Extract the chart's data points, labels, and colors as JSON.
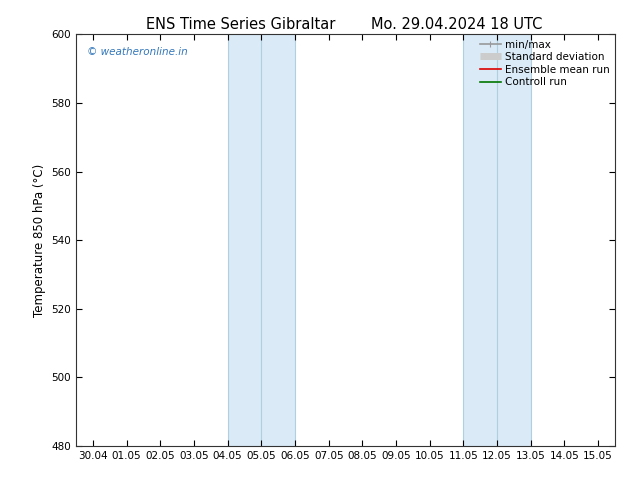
{
  "title_left": "ENS Time Series Gibraltar",
  "title_right": "Mo. 29.04.2024 18 UTC",
  "ylabel": "Temperature 850 hPa (°C)",
  "ylim": [
    480,
    600
  ],
  "yticks": [
    480,
    500,
    520,
    540,
    560,
    580,
    600
  ],
  "xtick_labels": [
    "30.04",
    "01.05",
    "02.05",
    "03.05",
    "04.05",
    "05.05",
    "06.05",
    "07.05",
    "08.05",
    "09.05",
    "10.05",
    "11.05",
    "12.05",
    "13.05",
    "14.05",
    "15.05"
  ],
  "xtick_positions": [
    0,
    1,
    2,
    3,
    4,
    5,
    6,
    7,
    8,
    9,
    10,
    11,
    12,
    13,
    14,
    15
  ],
  "xlim": [
    -0.5,
    15.5
  ],
  "shaded_bands": [
    {
      "x_start": 4,
      "x_end": 5,
      "x_mid": 5
    },
    {
      "x_start": 5,
      "x_end": 6,
      "x_mid": null
    },
    {
      "x_start": 11,
      "x_end": 12,
      "x_mid": 12
    },
    {
      "x_start": 12,
      "x_end": 13,
      "x_mid": null
    }
  ],
  "shade_color": "#daeaf7",
  "shade_edge_color": "#b0cfe0",
  "mid_line_color": "#b0cfe0",
  "watermark_text": "© weatheronline.in",
  "watermark_color": "#3377bb",
  "background_color": "#ffffff",
  "legend_items": [
    {
      "label": "min/max",
      "color": "#999999",
      "lw": 1.2
    },
    {
      "label": "Standard deviation",
      "color": "#cccccc",
      "lw": 5
    },
    {
      "label": "Ensemble mean run",
      "color": "#dd0000",
      "lw": 1.2
    },
    {
      "label": "Controll run",
      "color": "#007700",
      "lw": 1.2
    }
  ],
  "title_fontsize": 10.5,
  "tick_fontsize": 7.5,
  "ylabel_fontsize": 8.5,
  "watermark_fontsize": 7.5,
  "legend_fontsize": 7.5
}
